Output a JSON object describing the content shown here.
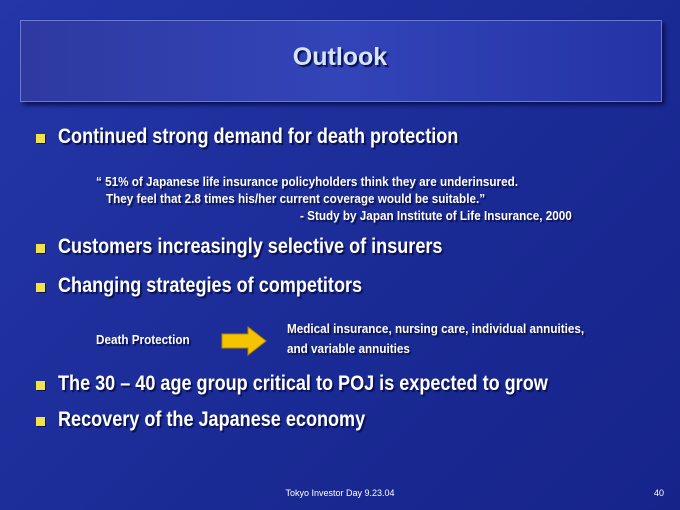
{
  "header": {
    "title": "Outlook"
  },
  "bullets": [
    {
      "text": "Continued strong demand for death protection"
    },
    {
      "text": "Customers increasingly selective of insurers"
    },
    {
      "text": "Changing strategies of competitors"
    },
    {
      "text": "The 30 – 40 age group critical to POJ is expected to grow"
    },
    {
      "text": "Recovery of the Japanese economy"
    }
  ],
  "quote": {
    "lines": [
      "“ 51% of Japanese life insurance policyholders think they are underinsured.",
      "They feel that 2.8 times his/her current coverage would be suitable.”"
    ],
    "source": "- Study by Japan Institute of Life Insurance, 2000"
  },
  "shift": {
    "from": "Death Protection",
    "to": [
      "Medical insurance, nursing care, individual annuities,",
      "and variable annuities"
    ]
  },
  "footer": {
    "text": "Tokyo Investor Day 9.23.04",
    "page": "40"
  }
}
